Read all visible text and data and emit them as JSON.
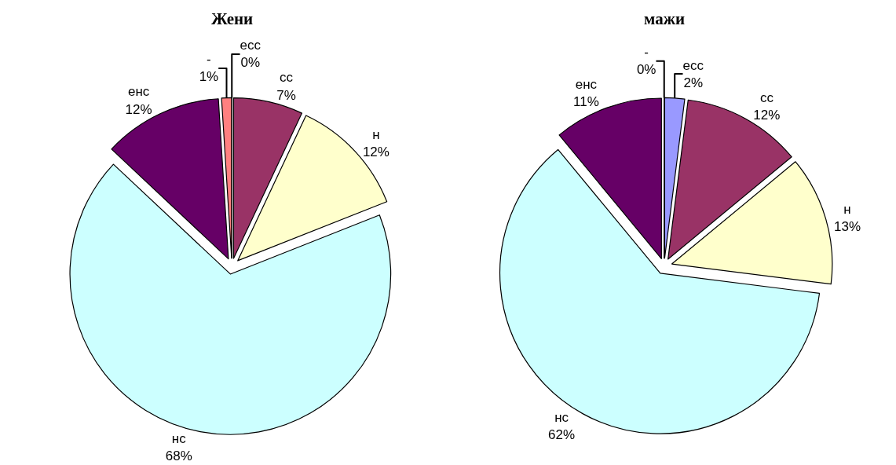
{
  "chart_data": [
    {
      "type": "pie",
      "title": "Жени",
      "categories": [
        "есс",
        "сс",
        "н",
        "нс",
        "енс",
        "-"
      ],
      "values": [
        0,
        7,
        12,
        68,
        12,
        1
      ],
      "value_labels": [
        "0%",
        "7%",
        "12%",
        "68%",
        "12%",
        "1%"
      ],
      "colors": [
        "#9999ff",
        "#993366",
        "#ffffcc",
        "#ccffff",
        "#660066",
        "#ff8080"
      ]
    },
    {
      "type": "pie",
      "title": "мажи",
      "categories": [
        "есс",
        "сс",
        "н",
        "нс",
        "енс",
        "-"
      ],
      "values": [
        2,
        12,
        13,
        62,
        11,
        0
      ],
      "value_labels": [
        "2%",
        "12%",
        "13%",
        "62%",
        "11%",
        "0%"
      ],
      "colors": [
        "#9999ff",
        "#993366",
        "#ffffcc",
        "#ccffff",
        "#660066",
        "#ff8080"
      ]
    }
  ]
}
